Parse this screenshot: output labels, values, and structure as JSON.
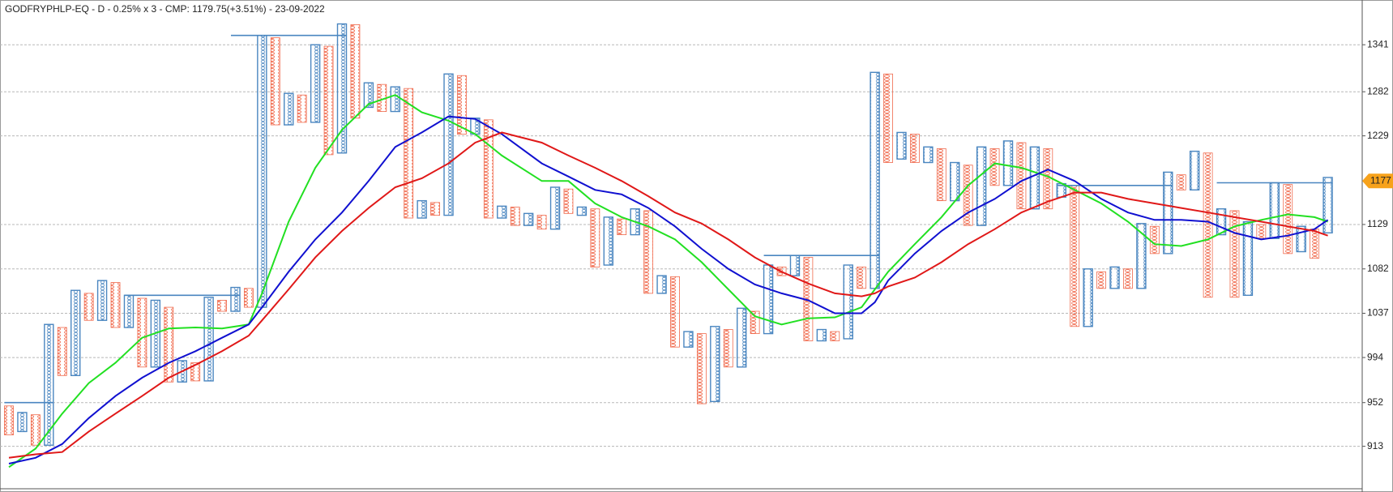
{
  "chart_data": {
    "type": "point-and-figure",
    "title": "GODFRYPHLP-EQ - D - 0.25% x 3 - CMP: 1179.75(+3.51%) - 23-09-2022",
    "log_scale": true,
    "grid": true,
    "ylim": [
      878,
      1376
    ],
    "yticks": [
      913,
      952,
      994,
      1037,
      1082,
      1129,
      1229,
      1282,
      1341
    ],
    "last_price": 1177,
    "last_price_color": "#f7a21b",
    "x_color": "#4a86c0",
    "o_color": "#f0694c",
    "columns": {
      "first": "O",
      "high": [
        949,
        943,
        941,
        1026,
        1023,
        1060,
        1057,
        1070,
        1068,
        1055,
        1052,
        1050,
        1043,
        991,
        989,
        1053,
        1050,
        1063,
        1062,
        1353,
        1350,
        1280,
        1278,
        1341,
        1339,
        1368,
        1367,
        1293,
        1291,
        1288,
        1286,
        1155,
        1153,
        1304,
        1302,
        1250,
        1248,
        1149,
        1148,
        1141,
        1139,
        1170,
        1168,
        1148,
        1146,
        1137,
        1135,
        1146,
        1144,
        1075,
        1074,
        1019,
        1017,
        1024,
        1021,
        1042,
        1039,
        1086,
        1084,
        1096,
        1094,
        1021,
        1019,
        1086,
        1084,
        1306,
        1304,
        1233,
        1231,
        1216,
        1214,
        1198,
        1195,
        1216,
        1214,
        1223,
        1221,
        1216,
        1214,
        1174,
        1172,
        1082,
        1079,
        1084,
        1082,
        1130,
        1127,
        1187,
        1184,
        1211,
        1209,
        1146,
        1144,
        1132,
        1129,
        1175,
        1173,
        1127,
        1124,
        1181
      ],
      "low": [
        923,
        926,
        914,
        914,
        977,
        977,
        1030,
        1030,
        1023,
        1023,
        985,
        985,
        971,
        971,
        972,
        972,
        1039,
        1039,
        1043,
        1043,
        1242,
        1242,
        1245,
        1245,
        1207,
        1209,
        1250,
        1263,
        1258,
        1258,
        1136,
        1136,
        1139,
        1139,
        1231,
        1231,
        1136,
        1136,
        1128,
        1128,
        1124,
        1124,
        1141,
        1139,
        1084,
        1086,
        1118,
        1118,
        1057,
        1057,
        1004,
        1004,
        951,
        953,
        985,
        985,
        1017,
        1017,
        1075,
        1075,
        1010,
        1010,
        1010,
        1012,
        1062,
        1062,
        1198,
        1202,
        1198,
        1198,
        1155,
        1155,
        1128,
        1128,
        1172,
        1172,
        1146,
        1146,
        1146,
        1159,
        1024,
        1024,
        1062,
        1062,
        1062,
        1062,
        1098,
        1098,
        1167,
        1167,
        1053,
        1118,
        1053,
        1055,
        1114,
        1114,
        1098,
        1100,
        1093,
        1120
      ]
    },
    "levels": [
      {
        "from": 0,
        "to": 3,
        "value": 952
      },
      {
        "from": 9,
        "to": 17,
        "value": 1055
      },
      {
        "from": 17,
        "to": 25,
        "value": 1353
      },
      {
        "from": 57,
        "to": 65,
        "value": 1096
      },
      {
        "from": 79,
        "to": 87,
        "value": 1172
      },
      {
        "from": 91,
        "to": 99,
        "value": 1175
      }
    ],
    "ma_x": [
      0,
      2,
      4,
      6,
      8,
      10,
      12,
      14,
      16,
      18,
      19,
      21,
      23,
      25,
      27,
      29,
      31,
      33,
      35,
      37,
      40,
      42,
      44,
      46,
      48,
      50,
      52,
      54,
      56,
      58,
      60,
      62,
      64,
      65,
      66,
      68,
      70,
      72,
      74,
      76,
      78,
      80,
      82,
      84,
      86,
      88,
      90,
      92,
      94,
      96,
      98,
      99
    ],
    "moving_averages": [
      {
        "color": "#22e022",
        "values": [
          895,
          911,
          942,
          970,
          989,
          1013,
          1022,
          1023,
          1022,
          1026,
          1057,
          1132,
          1192,
          1236,
          1267,
          1278,
          1257,
          1247,
          1231,
          1206,
          1177,
          1177,
          1152,
          1137,
          1127,
          1113,
          1089,
          1061,
          1034,
          1026,
          1032,
          1033,
          1043,
          1061,
          1079,
          1108,
          1137,
          1172,
          1197,
          1192,
          1182,
          1167,
          1152,
          1132,
          1108,
          1106,
          1113,
          1127,
          1134,
          1140,
          1137,
          1132
        ]
      },
      {
        "color": "#1010d0",
        "values": [
          898,
          903,
          915,
          938,
          958,
          975,
          989,
          1000,
          1013,
          1026,
          1043,
          1079,
          1113,
          1142,
          1177,
          1216,
          1233,
          1252,
          1249,
          1231,
          1197,
          1182,
          1167,
          1162,
          1147,
          1127,
          1103,
          1082,
          1066,
          1057,
          1050,
          1037,
          1037,
          1048,
          1070,
          1098,
          1122,
          1142,
          1157,
          1177,
          1190,
          1177,
          1157,
          1142,
          1134,
          1134,
          1132,
          1120,
          1113,
          1117,
          1124,
          1134
        ]
      },
      {
        "color": "#e01818",
        "values": [
          903,
          906,
          908,
          926,
          942,
          958,
          975,
          987,
          1000,
          1015,
          1030,
          1061,
          1094,
          1122,
          1147,
          1170,
          1180,
          1197,
          1221,
          1233,
          1221,
          1206,
          1192,
          1177,
          1160,
          1142,
          1130,
          1113,
          1094,
          1079,
          1067,
          1057,
          1054,
          1057,
          1064,
          1073,
          1089,
          1108,
          1124,
          1142,
          1154,
          1164,
          1164,
          1157,
          1152,
          1147,
          1142,
          1137,
          1132,
          1127,
          1122,
          1117
        ]
      }
    ]
  }
}
